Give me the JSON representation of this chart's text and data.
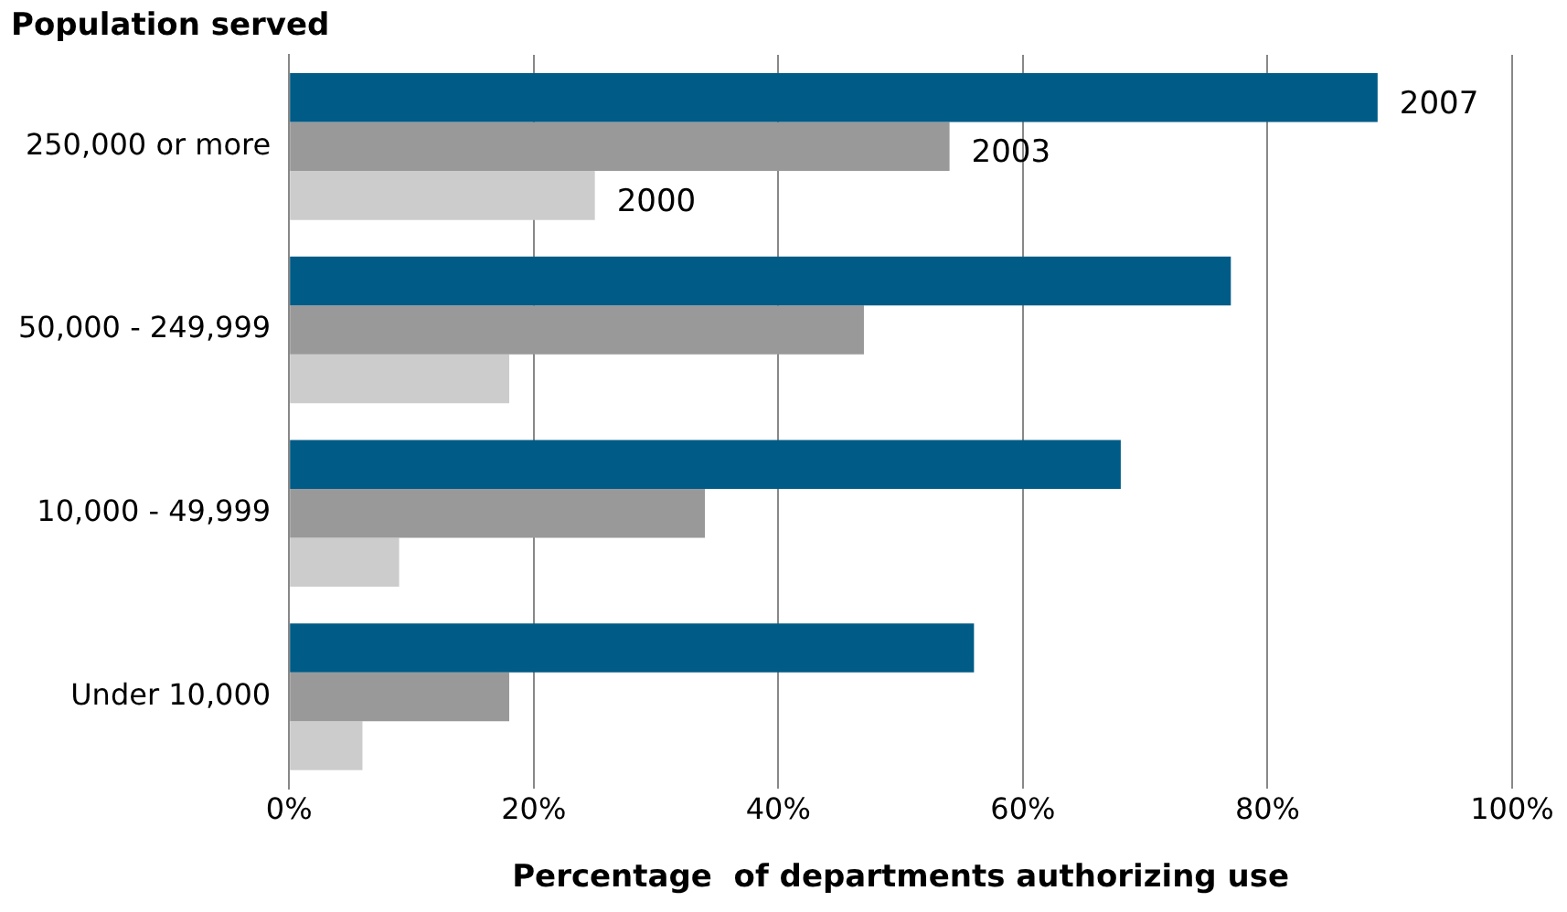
{
  "chart_data": {
    "type": "bar",
    "orientation": "horizontal",
    "ylabel": "Population served",
    "xlabel": "Percentage  of departments authorizing use",
    "categories": [
      "250,000 or more",
      "50,000 - 249,999",
      "10,000 - 49,999",
      "Under 10,000"
    ],
    "series": [
      {
        "name": "2007",
        "color": "#005b86",
        "values": [
          89,
          77,
          68,
          56
        ]
      },
      {
        "name": "2003",
        "color": "#999999",
        "values": [
          54,
          47,
          34,
          18
        ]
      },
      {
        "name": "2000",
        "color": "#cccccc",
        "values": [
          25,
          18,
          9,
          6
        ]
      }
    ],
    "xlim": [
      0,
      100
    ],
    "xticks": [
      {
        "value": 0,
        "label": "0%"
      },
      {
        "value": 20,
        "label": "20%"
      },
      {
        "value": 40,
        "label": "40%"
      },
      {
        "value": 60,
        "label": "60%"
      },
      {
        "value": 80,
        "label": "80%"
      },
      {
        "value": 100,
        "label": "100%"
      }
    ],
    "grid": "x",
    "legend": false
  }
}
